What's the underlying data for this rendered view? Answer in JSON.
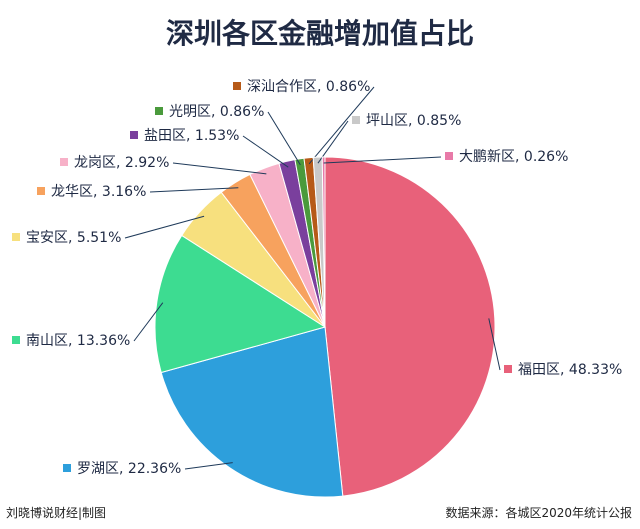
{
  "chart_data": {
    "type": "pie",
    "title": "深圳各区金融增加值占比",
    "categories": [
      "福田区",
      "罗湖区",
      "南山区",
      "宝安区",
      "龙华区",
      "龙岗区",
      "盐田区",
      "光明区",
      "深汕合作区",
      "坪山区",
      "大鹏新区"
    ],
    "values": [
      48.33,
      22.36,
      13.36,
      5.51,
      3.16,
      2.92,
      1.53,
      0.86,
      0.86,
      0.85,
      0.26
    ],
    "value_labels": [
      "48.33%",
      "22.36%",
      "13.36%",
      "5.51%",
      "3.16%",
      "2.92%",
      "1.53%",
      "0.86%",
      "0.86%",
      "0.85%",
      "0.26%"
    ],
    "colors": [
      "#e8617a",
      "#2d9fdc",
      "#3ddc91",
      "#f7e07e",
      "#f7a25e",
      "#f7b1c8",
      "#7a3f9d",
      "#4a9a3c",
      "#b65a18",
      "#c9c9c9",
      "#e87aa8"
    ],
    "credit": "刘晓博说财经|制图",
    "source": "数据来源：各城区2020年统计公报"
  }
}
